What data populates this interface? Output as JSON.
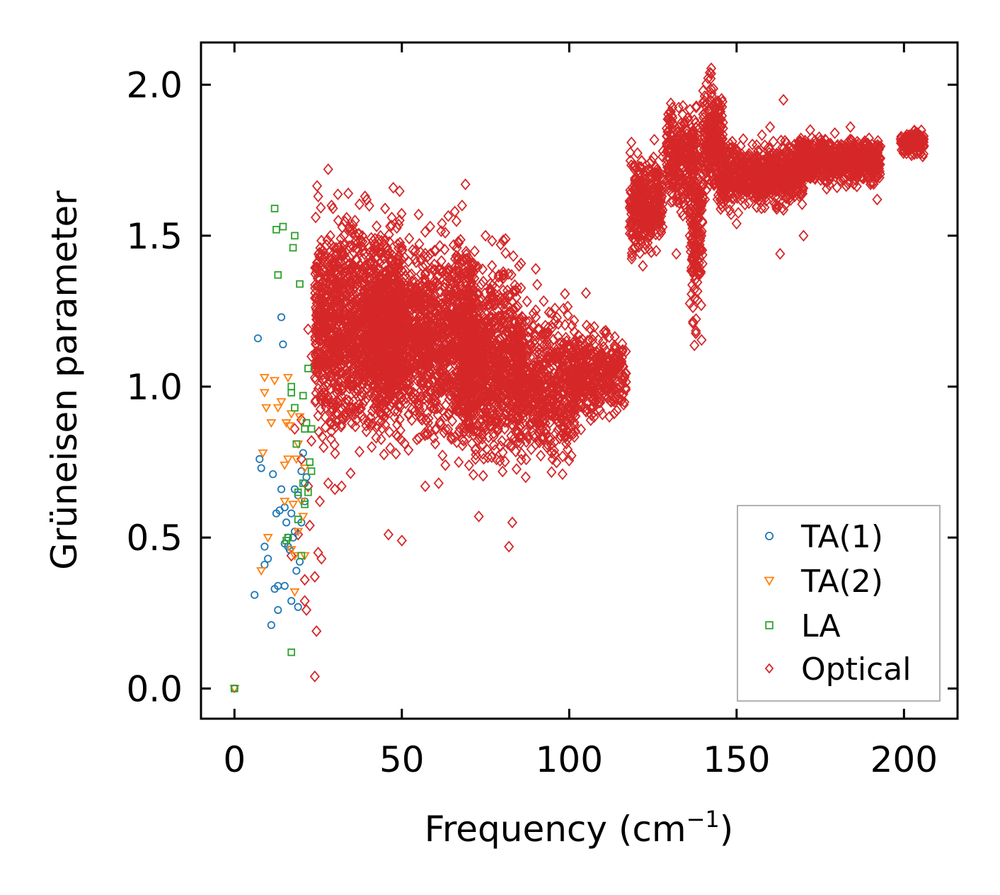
{
  "chart_data": {
    "type": "scatter",
    "xlabel": "Frequency (cm",
    "xlabel_superscript": "−1",
    "xlabel_suffix": ")",
    "ylabel": "Grüneisen parameter",
    "xlim": [
      -10,
      216
    ],
    "ylim": [
      -0.1,
      2.14
    ],
    "xticks": [
      0,
      50,
      100,
      150,
      200
    ],
    "xtick_labels": [
      "0",
      "50",
      "100",
      "150",
      "200"
    ],
    "yticks": [
      0.0,
      0.5,
      1.0,
      1.5,
      2.0
    ],
    "ytick_labels": [
      "0.0",
      "0.5",
      "1.0",
      "1.5",
      "2.0"
    ],
    "grid": false,
    "legend_position": "bottom-right",
    "series": [
      {
        "name": "TA(1)",
        "marker": "circle",
        "color": "#1f77b4",
        "points": [
          [
            0,
            0.0
          ],
          [
            6,
            0.31
          ],
          [
            7,
            1.16
          ],
          [
            7.5,
            0.76
          ],
          [
            8,
            0.73
          ],
          [
            9,
            0.41
          ],
          [
            9,
            0.47
          ],
          [
            10,
            0.43
          ],
          [
            11,
            0.21
          ],
          [
            11.5,
            0.71
          ],
          [
            12,
            0.33
          ],
          [
            12.5,
            0.58
          ],
          [
            13,
            0.34
          ],
          [
            13,
            0.26
          ],
          [
            13.5,
            0.59
          ],
          [
            14,
            1.23
          ],
          [
            14,
            0.66
          ],
          [
            14.5,
            1.14
          ],
          [
            15,
            0.34
          ],
          [
            15,
            0.48
          ],
          [
            15,
            0.6
          ],
          [
            15.5,
            0.55
          ],
          [
            16,
            0.5
          ],
          [
            16,
            0.47
          ],
          [
            16.5,
            0.46
          ],
          [
            17,
            0.58
          ],
          [
            17,
            0.29
          ],
          [
            17.5,
            0.5
          ],
          [
            18,
            0.52
          ],
          [
            18,
            0.66
          ],
          [
            18.5,
            0.39
          ],
          [
            19,
            0.27
          ],
          [
            19,
            0.64
          ],
          [
            19.5,
            0.42
          ],
          [
            20,
            0.72
          ],
          [
            20,
            0.55
          ],
          [
            20.5,
            0.78
          ],
          [
            21,
            0.62
          ],
          [
            21,
            0.68
          ],
          [
            21.5,
            0.7
          ]
        ]
      },
      {
        "name": "TA(2)",
        "marker": "triangle-down",
        "color": "#ff7f0e",
        "points": [
          [
            0,
            0.0
          ],
          [
            8,
            0.39
          ],
          [
            8.5,
            0.78
          ],
          [
            9,
            1.03
          ],
          [
            9,
            0.98
          ],
          [
            9.5,
            0.93
          ],
          [
            10,
            0.5
          ],
          [
            11,
            0.88
          ],
          [
            12,
            1.02
          ],
          [
            13,
            0.93
          ],
          [
            14,
            0.95
          ],
          [
            15,
            0.74
          ],
          [
            15,
            0.62
          ],
          [
            15.5,
            0.88
          ],
          [
            16,
            1.03
          ],
          [
            16,
            0.76
          ],
          [
            16.5,
            0.87
          ],
          [
            17,
            0.91
          ],
          [
            17,
            0.46
          ],
          [
            17.5,
            0.61
          ],
          [
            18,
            0.32
          ],
          [
            18,
            0.44
          ],
          [
            18.5,
            0.76
          ],
          [
            19,
            0.52
          ],
          [
            19,
            0.81
          ],
          [
            19.5,
            0.9
          ],
          [
            20,
            0.62
          ],
          [
            20.5,
            0.57
          ],
          [
            21,
            0.44
          ],
          [
            21,
            0.73
          ]
        ]
      },
      {
        "name": "LA",
        "marker": "square",
        "color": "#2ca02c",
        "points": [
          [
            0,
            0.0
          ],
          [
            12,
            1.59
          ],
          [
            12.5,
            1.52
          ],
          [
            13,
            1.37
          ],
          [
            14.5,
            1.53
          ],
          [
            15.5,
            0.49
          ],
          [
            16,
            0.5
          ],
          [
            17,
            1.0
          ],
          [
            17,
            0.98
          ],
          [
            17,
            0.12
          ],
          [
            17.5,
            1.46
          ],
          [
            18,
            1.5
          ],
          [
            18,
            0.93
          ],
          [
            18.5,
            0.81
          ],
          [
            19,
            0.65
          ],
          [
            19,
            0.56
          ],
          [
            19.5,
            1.34
          ],
          [
            20,
            0.44
          ],
          [
            20.5,
            0.97
          ],
          [
            20.5,
            0.68
          ],
          [
            21,
            0.61
          ],
          [
            21,
            0.86
          ],
          [
            21.5,
            0.88
          ],
          [
            22,
            1.06
          ],
          [
            22,
            0.65
          ],
          [
            22.5,
            0.75
          ],
          [
            23,
            0.86
          ],
          [
            23,
            0.72
          ]
        ]
      },
      {
        "name": "Optical",
        "marker": "diamond",
        "color": "#d62728",
        "points": [
          [
            17,
            0.44
          ],
          [
            18,
            0.86
          ],
          [
            19,
            0.51
          ],
          [
            20,
            0.76
          ],
          [
            20,
            0.89
          ],
          [
            21,
            0.36
          ],
          [
            21,
            0.29
          ],
          [
            21.5,
            0.26
          ],
          [
            22,
            0.67
          ],
          [
            22,
            1.19
          ],
          [
            22.5,
            0.54
          ],
          [
            23,
            0.82
          ],
          [
            23,
            1.1
          ],
          [
            24,
            0.04
          ],
          [
            24,
            0.37
          ],
          [
            24.5,
            0.19
          ],
          [
            25,
            0.45
          ],
          [
            25,
            1.63
          ],
          [
            25.5,
            0.62
          ],
          [
            26,
            0.43
          ],
          [
            26,
            1.24
          ],
          [
            27,
            1.44
          ],
          [
            28,
            1.72
          ],
          [
            28,
            0.68
          ],
          [
            29,
            1.6
          ],
          [
            30,
            0.66
          ],
          [
            31,
            1.55
          ],
          [
            32,
            0.67
          ],
          [
            34,
            1.64
          ],
          [
            36,
            1.55
          ],
          [
            39,
            1.63
          ],
          [
            41,
            0.8
          ],
          [
            45,
            1.59
          ],
          [
            46,
            0.51
          ],
          [
            47,
            1.56
          ],
          [
            50,
            0.49
          ],
          [
            52,
            0.79
          ],
          [
            55,
            1.57
          ],
          [
            57,
            0.67
          ],
          [
            58,
            0.86
          ],
          [
            60,
            1.45
          ],
          [
            61,
            0.68
          ],
          [
            62,
            1.54
          ],
          [
            63,
            0.74
          ],
          [
            67,
            0.75
          ],
          [
            68,
            1.6
          ],
          [
            69,
            1.67
          ],
          [
            72,
            0.76
          ],
          [
            73,
            0.57
          ],
          [
            75,
            1.5
          ],
          [
            79,
            1.37
          ],
          [
            82,
            0.47
          ],
          [
            83,
            0.55
          ],
          [
            85,
            1.4
          ],
          [
            87,
            0.7
          ],
          [
            90,
            1.39
          ],
          [
            95,
            0.76
          ],
          [
            98,
            0.71
          ],
          [
            105,
            1.31
          ],
          [
            112,
            0.9
          ],
          [
            115,
            1.08
          ],
          [
            122,
            1.4
          ],
          [
            124,
            1.74
          ],
          [
            126,
            1.45
          ],
          [
            128,
            1.78
          ],
          [
            130,
            1.69
          ],
          [
            132,
            1.44
          ],
          [
            134,
            1.93
          ],
          [
            136,
            1.5
          ],
          [
            137,
            1.21
          ],
          [
            138,
            1.4
          ],
          [
            140,
            1.98
          ],
          [
            142,
            2.04
          ],
          [
            144,
            1.76
          ],
          [
            146,
            1.65
          ],
          [
            150,
            1.54
          ],
          [
            152,
            1.82
          ],
          [
            156,
            1.8
          ],
          [
            158,
            1.64
          ],
          [
            160,
            1.86
          ],
          [
            163,
            1.44
          ],
          [
            164,
            1.95
          ],
          [
            168,
            1.73
          ],
          [
            170,
            1.5
          ],
          [
            172,
            1.85
          ],
          [
            176,
            1.8
          ],
          [
            180,
            1.66
          ],
          [
            184,
            1.86
          ],
          [
            188,
            1.8
          ],
          [
            190,
            1.67
          ],
          [
            192,
            1.62
          ],
          [
            200,
            1.78
          ],
          [
            204,
            1.84
          ]
        ],
        "clusters": [
          {
            "x_range": [
              24,
              50
            ],
            "y_center": 1.2,
            "y_spread": 0.28,
            "count": 1500
          },
          {
            "x_range": [
              42,
              72
            ],
            "y_center": 1.17,
            "y_spread": 0.26,
            "count": 1500
          },
          {
            "x_range": [
              68,
              86
            ],
            "y_center": 1.08,
            "y_spread": 0.26,
            "count": 900
          },
          {
            "x_range": [
              84,
              102
            ],
            "y_center": 1.01,
            "y_spread": 0.2,
            "count": 600
          },
          {
            "x_range": [
              101,
              117
            ],
            "y_center": 1.04,
            "y_spread": 0.12,
            "count": 350
          },
          {
            "x_range": [
              118,
              128
            ],
            "y_center": 1.6,
            "y_spread": 0.13,
            "count": 350
          },
          {
            "x_range": [
              129,
              138
            ],
            "y_center": 1.76,
            "y_spread": 0.14,
            "count": 300
          },
          {
            "x_range": [
              136,
              140
            ],
            "y_center": 1.55,
            "y_spread": 0.3,
            "count": 200
          },
          {
            "x_range": [
              140,
              146
            ],
            "y_center": 1.82,
            "y_spread": 0.15,
            "count": 250
          },
          {
            "x_range": [
              145,
              170
            ],
            "y_center": 1.7,
            "y_spread": 0.09,
            "count": 700
          },
          {
            "x_range": [
              168,
              193
            ],
            "y_center": 1.75,
            "y_spread": 0.06,
            "count": 700
          },
          {
            "x_range": [
              199,
              206
            ],
            "y_center": 1.81,
            "y_spread": 0.04,
            "count": 120
          }
        ]
      }
    ]
  }
}
